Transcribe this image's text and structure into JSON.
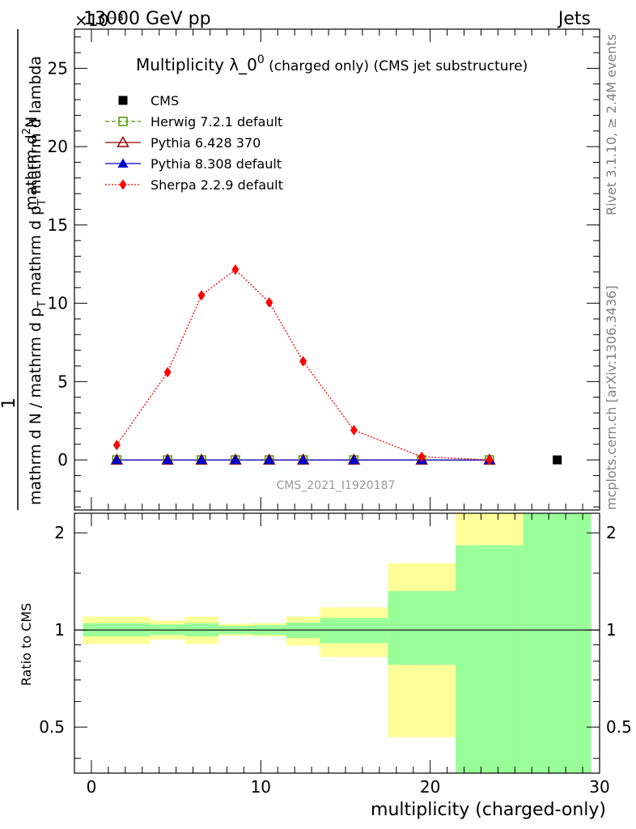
{
  "header": {
    "energy_label": "13000 GeV pp",
    "exponent_label": "×10⁻³",
    "process_label": "Jets"
  },
  "side_labels": {
    "rivet": "Rivet 3.1.10, ≥ 2.4M events",
    "mcplots": "mcplots.cern.ch [arXiv:1306.3436]"
  },
  "watermark": "CMS_2021_I1920187",
  "main_plot": {
    "title_main": "Multiplicity λ_0",
    "title_sup": "0",
    "title_sub": " (charged only) (CMS jet substructure)",
    "ylabel_top": "1",
    "ylabel_num_a": "mathrm d",
    "ylabel_num_sup": "2",
    "ylabel_num_b": "N",
    "ylabel_den_a": "mathrm d N / mathrm d p",
    "ylabel_den_sub1": "T",
    "ylabel_den_b": " mathrm d p",
    "ylabel_den_sub2": "T",
    "ylabel_den_c": " mathrm d lambda"
  },
  "ratio_plot": {
    "ylabel": "Ratio to CMS",
    "xlabel": "multiplicity (charged-only)"
  },
  "colors": {
    "cms": "#000000",
    "herwig": "#4c9900",
    "pythia6": "#990000",
    "pythia8": "#0000cc",
    "sherpa": "#ff0000",
    "band_inner": "#99ff99",
    "band_outer": "#ffff99"
  },
  "chart_data": [
    {
      "type": "line",
      "title": "Multiplicity λ_0^0 (charged only) (CMS jet substructure)",
      "xlabel": "multiplicity (charged-only)",
      "xlim": [
        -1,
        30
      ],
      "ylim": [
        -3.2,
        27.5
      ],
      "y_scale_factor": "×10⁻³",
      "y_ticks": [
        0,
        5,
        10,
        15,
        20,
        25
      ],
      "legend_position": "top-left",
      "legend_order": [
        "CMS",
        "Herwig 7.2.1 default",
        "Pythia 6.428 370",
        "Pythia 8.308 default",
        "Sherpa 2.2.9 default"
      ],
      "series": [
        {
          "name": "CMS",
          "marker": "square",
          "x": [
            27.5
          ],
          "y": [
            0.0
          ]
        },
        {
          "name": "Herwig 7.2.1 default",
          "marker": "open-square",
          "style": "dashed",
          "x": [
            1.5,
            4.5,
            6.5,
            8.5,
            10.5,
            12.5,
            15.5,
            19.5,
            23.5
          ],
          "y": [
            0,
            0,
            0,
            0,
            0,
            0,
            0,
            0,
            0
          ]
        },
        {
          "name": "Pythia 6.428 370",
          "marker": "open-triangle",
          "style": "solid",
          "x": [
            1.5,
            4.5,
            6.5,
            8.5,
            10.5,
            12.5,
            15.5,
            19.5,
            23.5
          ],
          "y": [
            0,
            0,
            0,
            0,
            0,
            0,
            0,
            0,
            0
          ]
        },
        {
          "name": "Pythia 8.308 default",
          "marker": "filled-triangle",
          "style": "solid",
          "x": [
            1.5,
            4.5,
            6.5,
            8.5,
            10.5,
            12.5,
            15.5,
            19.5,
            23.5
          ],
          "y": [
            0,
            0,
            0,
            0,
            0,
            0,
            0,
            0,
            0
          ]
        },
        {
          "name": "Sherpa 2.2.9 default",
          "marker": "diamond",
          "style": "dotted",
          "x": [
            1.5,
            4.5,
            6.5,
            8.5,
            10.5,
            12.5,
            15.5,
            19.5,
            23.5
          ],
          "y": [
            0.95,
            5.6,
            10.5,
            12.15,
            10.05,
            6.3,
            1.9,
            0.2,
            0.0
          ]
        }
      ]
    },
    {
      "type": "area",
      "title": "",
      "ylabel": "Ratio to CMS",
      "xlabel": "multiplicity (charged-only)",
      "xlim": [
        -1,
        30
      ],
      "ylim": [
        0.36,
        2.3
      ],
      "y_scale": "log",
      "x_ticks": [
        0,
        10,
        20,
        30
      ],
      "y_ticks": [
        0.5,
        1,
        2
      ],
      "reference_line": 1,
      "bins": [
        {
          "xlo": -0.5,
          "xhi": 3.5,
          "inner": [
            0.955,
            1.05
          ],
          "outer": [
            0.905,
            1.1
          ]
        },
        {
          "xlo": 3.5,
          "xhi": 5.5,
          "inner": [
            0.965,
            1.04
          ],
          "outer": [
            0.935,
            1.07
          ]
        },
        {
          "xlo": 5.5,
          "xhi": 7.5,
          "inner": [
            0.955,
            1.05
          ],
          "outer": [
            0.905,
            1.1
          ]
        },
        {
          "xlo": 7.5,
          "xhi": 9.5,
          "inner": [
            0.97,
            1.03
          ],
          "outer": [
            0.96,
            1.045
          ]
        },
        {
          "xlo": 9.5,
          "xhi": 11.5,
          "inner": [
            0.965,
            1.035
          ],
          "outer": [
            0.955,
            1.05
          ]
        },
        {
          "xlo": 11.5,
          "xhi": 13.5,
          "inner": [
            0.945,
            1.055
          ],
          "outer": [
            0.895,
            1.1
          ]
        },
        {
          "xlo": 13.5,
          "xhi": 17.5,
          "inner": [
            0.91,
            1.09
          ],
          "outer": [
            0.825,
            1.175
          ]
        },
        {
          "xlo": 17.5,
          "xhi": 21.5,
          "inner": [
            0.78,
            1.32
          ],
          "outer": [
            0.465,
            1.61
          ]
        },
        {
          "xlo": 21.5,
          "xhi": 25.5,
          "inner": [
            0.36,
            1.83
          ],
          "outer": [
            0.36,
            2.3
          ]
        },
        {
          "xlo": 25.5,
          "xhi": 29.5,
          "inner": [
            0.36,
            2.3
          ],
          "outer": [
            0.36,
            2.3
          ]
        }
      ]
    }
  ]
}
